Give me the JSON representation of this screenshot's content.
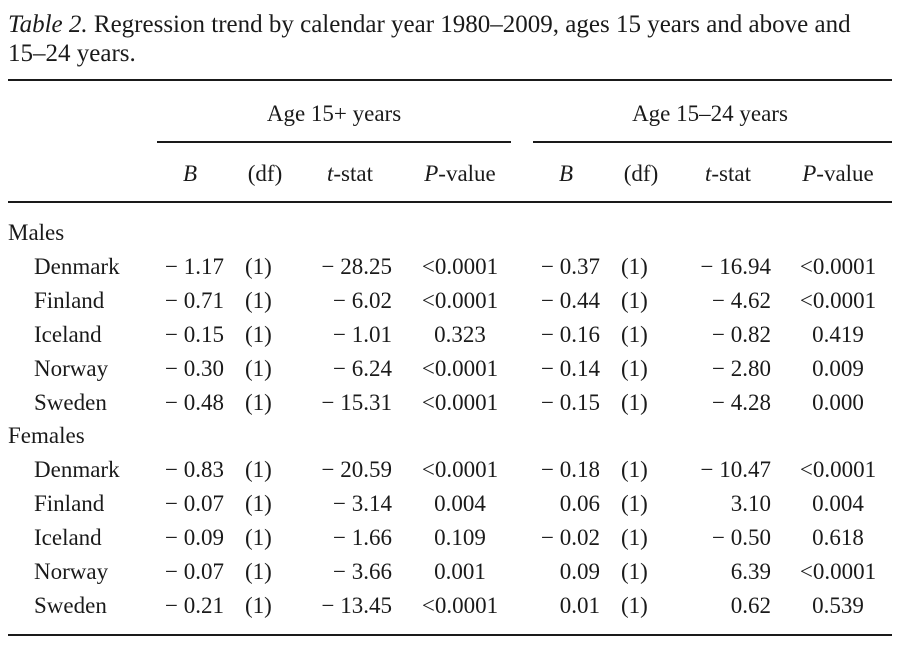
{
  "caption": {
    "label": "Table 2.",
    "text": " Regression trend by calendar year 1980–2009, ages 15 years and above and 15–24 years."
  },
  "groups": [
    "Age 15+ years",
    "Age 15–24 years"
  ],
  "columns": {
    "b": "B",
    "df": "(df)",
    "t_italic": "t",
    "t_rest": "-stat",
    "p_italic": "P",
    "p_rest": "-value"
  },
  "sections": [
    {
      "label": "Males",
      "rows": [
        {
          "country": "Denmark",
          "b1": "− 1.17",
          "df1": "(1)",
          "t1": "− 28.25",
          "p1": "<0.0001",
          "b2": "− 0.37",
          "df2": "(1)",
          "t2": "− 16.94",
          "p2": "<0.0001"
        },
        {
          "country": "Finland",
          "b1": "− 0.71",
          "df1": "(1)",
          "t1": "− 6.02",
          "p1": "<0.0001",
          "b2": "− 0.44",
          "df2": "(1)",
          "t2": "− 4.62",
          "p2": "<0.0001"
        },
        {
          "country": "Iceland",
          "b1": "− 0.15",
          "df1": "(1)",
          "t1": "− 1.01",
          "p1": "0.323",
          "b2": "− 0.16",
          "df2": "(1)",
          "t2": "− 0.82",
          "p2": "0.419"
        },
        {
          "country": "Norway",
          "b1": "− 0.30",
          "df1": "(1)",
          "t1": "− 6.24",
          "p1": "<0.0001",
          "b2": "− 0.14",
          "df2": "(1)",
          "t2": "− 2.80",
          "p2": "0.009"
        },
        {
          "country": "Sweden",
          "b1": "− 0.48",
          "df1": "(1)",
          "t1": "− 15.31",
          "p1": "<0.0001",
          "b2": "− 0.15",
          "df2": "(1)",
          "t2": "− 4.28",
          "p2": "0.000"
        }
      ]
    },
    {
      "label": "Females",
      "rows": [
        {
          "country": "Denmark",
          "b1": "− 0.83",
          "df1": "(1)",
          "t1": "− 20.59",
          "p1": "<0.0001",
          "b2": "− 0.18",
          "df2": "(1)",
          "t2": "− 10.47",
          "p2": "<0.0001"
        },
        {
          "country": "Finland",
          "b1": "− 0.07",
          "df1": "(1)",
          "t1": "− 3.14",
          "p1": "0.004",
          "b2": "0.06",
          "df2": "(1)",
          "t2": "3.10",
          "p2": "0.004"
        },
        {
          "country": "Iceland",
          "b1": "− 0.09",
          "df1": "(1)",
          "t1": "− 1.66",
          "p1": "0.109",
          "b2": "− 0.02",
          "df2": "(1)",
          "t2": "− 0.50",
          "p2": "0.618"
        },
        {
          "country": "Norway",
          "b1": "− 0.07",
          "df1": "(1)",
          "t1": "− 3.66",
          "p1": "0.001",
          "b2": "0.09",
          "df2": "(1)",
          "t2": "6.39",
          "p2": "<0.0001"
        },
        {
          "country": "Sweden",
          "b1": "− 0.21",
          "df1": "(1)",
          "t1": "− 13.45",
          "p1": "<0.0001",
          "b2": "0.01",
          "df2": "(1)",
          "t2": "0.62",
          "p2": "0.539"
        }
      ]
    }
  ]
}
